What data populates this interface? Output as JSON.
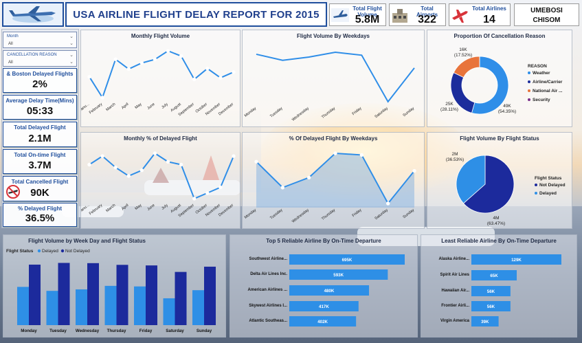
{
  "header": {
    "title": "USA AIRLINE FLIGHT DELAY REPORT FOR 2015",
    "author_line1": "UMEBOSI",
    "author_line2": "CHISOM",
    "tiles": [
      {
        "label": "Total Flight Volume",
        "value": "5.8M",
        "icon": "airplane-icon"
      },
      {
        "label": "Total Airports",
        "value": "322",
        "icon": "airport-icon"
      },
      {
        "label": "Total Airlines",
        "value": "14",
        "icon": "airline-icon"
      }
    ]
  },
  "slicers": [
    {
      "label": "Month",
      "value": "All"
    },
    {
      "label": "CANCELLATION REASON",
      "value": "All"
    }
  ],
  "kpis": [
    {
      "label": "& Boston Delayed Flights",
      "value": "2%"
    },
    {
      "label": "Average Delay Time(Mins)",
      "value": "05:33"
    },
    {
      "label": "Total Delayed Flight",
      "value": "2.1M"
    },
    {
      "label": "Total On-time Flight",
      "value": "3.7M"
    },
    {
      "label": "Total Cancelled Flight",
      "value": "90K"
    },
    {
      "label": "% Delayed Flight",
      "value": "36.5%"
    }
  ],
  "colors": {
    "line": "#2f8ee8",
    "donut_weather": "#2f8ee8",
    "donut_carrier": "#1c2d9c",
    "donut_nas": "#e8743b",
    "donut_security": "#7a2e8a",
    "dark_blue": "#1c2a9c",
    "light_blue": "#2e8fe6"
  },
  "chart_data": [
    {
      "id": "monthly_volume",
      "type": "line",
      "title": "Monthly Flight Volume",
      "categories": [
        "January",
        "February",
        "March",
        "April",
        "May",
        "June",
        "July",
        "August",
        "September",
        "October",
        "November",
        "December"
      ],
      "category_labels": [
        "Janu...",
        "February",
        "March",
        "April",
        "May",
        "June",
        "July",
        "August",
        "September",
        "October",
        "November",
        "December"
      ],
      "values": [
        469968,
        429191,
        504312,
        485151,
        496993,
        503897,
        520718,
        510536,
        464946,
        486165,
        467972,
        479230
      ]
    },
    {
      "id": "weekday_volume",
      "type": "line",
      "title": "Flight Volume By Weekdays",
      "categories": [
        "Monday",
        "Tuesday",
        "Wednesday",
        "Thursday",
        "Friday",
        "Saturday",
        "Sunday"
      ],
      "values": [
        865543,
        844600,
        855897,
        872521,
        862209,
        700545,
        817764
      ]
    },
    {
      "id": "cancellation_reason",
      "type": "pie",
      "title": "Proportion Of Cancellation Reason",
      "legend_title": "REASON",
      "slices": [
        {
          "name": "Weather",
          "value": 49,
          "label": "49K",
          "pct": "(54.35%)"
        },
        {
          "name": "Airline/Carrier",
          "value": 25,
          "label": "25K",
          "pct": "(28.11%)"
        },
        {
          "name": "National Air ...",
          "value": 16,
          "label": "16K",
          "pct": "(17.52%)"
        },
        {
          "name": "Security",
          "value": 0.02
        }
      ]
    },
    {
      "id": "monthly_pct_delayed",
      "type": "line",
      "title": "Monthly % of Delayed Flight",
      "categories": [
        "January",
        "February",
        "March",
        "April",
        "May",
        "June",
        "July",
        "August",
        "September",
        "October",
        "November",
        "December"
      ],
      "category_labels": [
        "Janu...",
        "February",
        "March",
        "April",
        "May",
        "June",
        "July",
        "August",
        "September",
        "October",
        "November",
        "December"
      ],
      "values": [
        38,
        41,
        37,
        34,
        36,
        42,
        39,
        38,
        26,
        28,
        30,
        41
      ]
    },
    {
      "id": "weekday_pct_delayed",
      "type": "area",
      "title": "% Of Delayed Flight By Weekdays",
      "categories": [
        "Monday",
        "Tuesday",
        "Wednesday",
        "Thursday",
        "Friday",
        "Saturday",
        "Sunday"
      ],
      "values": [
        38.5,
        35.4,
        36.6,
        39.5,
        39.3,
        33.5,
        37.4
      ]
    },
    {
      "id": "status_volume",
      "type": "pie",
      "title": "Flight Volume By Flight Status",
      "legend_title": "Flight Status",
      "slices": [
        {
          "name": "Not Delayed",
          "value": 63.47,
          "label": "4M",
          "pct": "(63.47%)"
        },
        {
          "name": "Delayed",
          "value": 36.53,
          "label": "2M",
          "pct": "(36.53%)"
        }
      ]
    },
    {
      "id": "weekday_status",
      "type": "bar",
      "title": "Flight Volume by Week Day and Flight Status",
      "legend_title": "Flight Status",
      "categories": [
        "Monday",
        "Tuesday",
        "Wednesday",
        "Thursday",
        "Friday",
        "Saturday",
        "Sunday"
      ],
      "series": [
        {
          "name": "Delayed",
          "values": [
            335,
            300,
            313,
            344,
            339,
            235,
            306
          ]
        },
        {
          "name": "Not Delayed",
          "values": [
            530,
            545,
            543,
            528,
            523,
            466,
            512
          ]
        }
      ]
    },
    {
      "id": "top5_reliable",
      "type": "bar",
      "title": "Top 5 Reliable Airline By On-Time Departure",
      "categories": [
        "Southwest Airline...",
        "Delta Air Lines Inc.",
        "American Airlines ...",
        "Skywest Airlines I...",
        "Atlantic Southeas..."
      ],
      "values": [
        695,
        593,
        480,
        417,
        402
      ],
      "labels": [
        "695K",
        "593K",
        "480K",
        "417K",
        "402K"
      ]
    },
    {
      "id": "least_reliable",
      "type": "bar",
      "title": "Least Reliable Airline By On-Time Departure",
      "categories": [
        "Alaska Airline...",
        "Spirit Air Lines",
        "Hawaiian Air...",
        "Frontier Airli...",
        "Virgin America"
      ],
      "values": [
        129,
        65,
        56,
        56,
        39
      ],
      "labels": [
        "129K",
        "65K",
        "56K",
        "56K",
        "39K"
      ]
    }
  ]
}
